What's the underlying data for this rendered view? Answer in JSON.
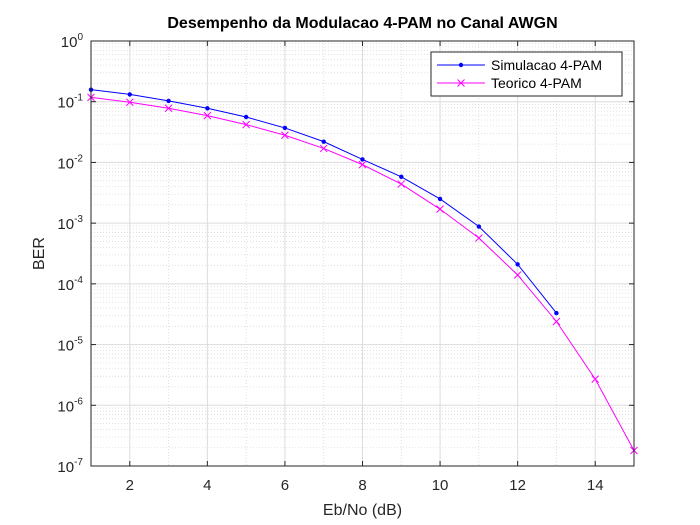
{
  "chart_data": {
    "type": "line",
    "title": "Desempenho da Modulacao 4-PAM no Canal AWGN",
    "xlabel": "Eb/No (dB)",
    "ylabel": "BER",
    "xlim": [
      1,
      15
    ],
    "ylim": [
      1e-07,
      1
    ],
    "yscale": "log",
    "grid": true,
    "minor_grid": true,
    "legend_position": "top-right",
    "x_ticks": [
      2,
      4,
      6,
      8,
      10,
      12,
      14
    ],
    "y_tick_exponents": [
      0,
      -1,
      -2,
      -3,
      -4,
      -5,
      -6,
      -7
    ],
    "series": [
      {
        "name": "Simulacao 4-PAM",
        "color": "#0000ff",
        "marker": "dot",
        "x": [
          1,
          2,
          3,
          4,
          5,
          6,
          7,
          8,
          9,
          10,
          11,
          12,
          13
        ],
        "y": [
          0.158,
          0.132,
          0.103,
          0.078,
          0.056,
          0.037,
          0.022,
          0.0112,
          0.0058,
          0.0025,
          0.00088,
          0.00021,
          3.3e-05
        ]
      },
      {
        "name": "Teorico 4-PAM",
        "color": "#ff00ff",
        "marker": "x",
        "x": [
          1,
          2,
          3,
          4,
          5,
          6,
          7,
          8,
          9,
          10,
          11,
          12,
          13,
          14,
          15
        ],
        "y": [
          0.118,
          0.098,
          0.078,
          0.059,
          0.042,
          0.028,
          0.017,
          0.0092,
          0.0044,
          0.0017,
          0.00057,
          0.00014,
          2.4e-05,
          2.7e-06,
          1.8e-07
        ]
      }
    ]
  }
}
